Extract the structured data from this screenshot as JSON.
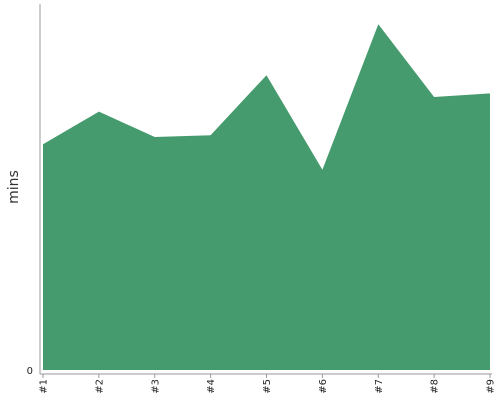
{
  "chart_data": {
    "type": "area",
    "categories": [
      "#1",
      "#2",
      "#3",
      "#4",
      "#5",
      "#6",
      "#7",
      "#8",
      "#9"
    ],
    "series": [
      {
        "values": [
          62,
          71,
          64,
          64.5,
          81,
          55,
          95,
          75,
          76
        ]
      }
    ],
    "ylabel": "mins",
    "xlabel": "",
    "ylim": [
      0,
      100
    ],
    "y_ticks": [
      "0"
    ],
    "grid": false,
    "legend": "none",
    "colors": {
      "fill": "#459b6d",
      "axis": "#9a9a9a",
      "text": "#222222"
    }
  }
}
